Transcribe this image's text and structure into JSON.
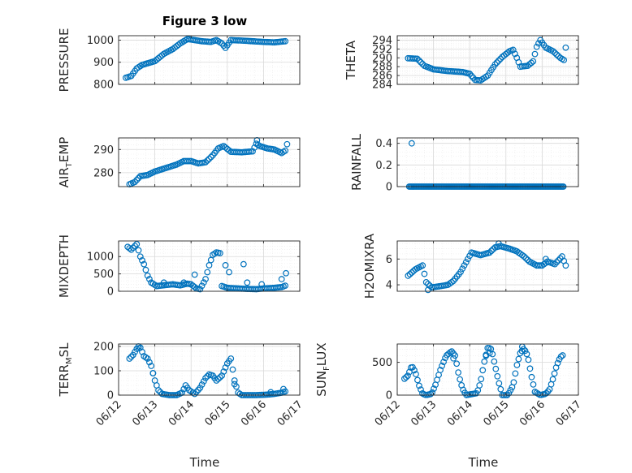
{
  "figure": {
    "title": "Figure 3 low",
    "xlabel": "Time"
  },
  "colors": {
    "marker": "#0072BD",
    "axes": "#262626",
    "grid": "#d9d9d9",
    "minorGrid": "#ececec",
    "background": "#ffffff"
  },
  "chart_data": [
    {
      "type": "scatter",
      "title": "Figure 3 low",
      "ylabel": "PRESSURE",
      "xlabel": "",
      "ylim": [
        800,
        1020
      ],
      "yticks": [
        800,
        900,
        1000
      ],
      "xlim": [
        "06/12",
        "06/17"
      ],
      "xticks": [
        "06/12",
        "06/13",
        "06/14",
        "06/15",
        "06/16",
        "06/17"
      ],
      "grid": true,
      "minor_grid": true,
      "series": [
        {
          "name": "",
          "shape": "pressure"
        }
      ]
    },
    {
      "type": "scatter",
      "title": "",
      "ylabel": "THETA",
      "xlabel": "",
      "ylim": [
        284,
        295
      ],
      "yticks": [
        284,
        286,
        288,
        290,
        292,
        294
      ],
      "xlim": [
        "06/12",
        "06/17"
      ],
      "xticks": [
        "06/12",
        "06/13",
        "06/14",
        "06/15",
        "06/16",
        "06/17"
      ],
      "grid": true,
      "minor_grid": true,
      "series": [
        {
          "name": "",
          "shape": "theta"
        }
      ]
    },
    {
      "type": "scatter",
      "title": "",
      "ylabel": "AIR_TEMP",
      "ylabel_parts": [
        "AIR",
        "T",
        "EMP"
      ],
      "xlabel": "",
      "ylim": [
        274,
        295
      ],
      "yticks": [
        280,
        290
      ],
      "xlim": [
        "06/12",
        "06/17"
      ],
      "xticks": [
        "06/12",
        "06/13",
        "06/14",
        "06/15",
        "06/16",
        "06/17"
      ],
      "grid": true,
      "minor_grid": true,
      "series": [
        {
          "name": "",
          "shape": "airtemp"
        }
      ]
    },
    {
      "type": "scatter",
      "title": "",
      "ylabel": "RAINFALL",
      "xlabel": "",
      "ylim": [
        0,
        0.45
      ],
      "yticks": [
        0,
        0.2,
        0.4
      ],
      "xlim": [
        "06/12",
        "06/17"
      ],
      "xticks": [
        "06/12",
        "06/13",
        "06/14",
        "06/15",
        "06/16",
        "06/17"
      ],
      "grid": true,
      "minor_grid": true,
      "series": [
        {
          "name": "",
          "shape": "rain"
        }
      ]
    },
    {
      "type": "scatter",
      "title": "",
      "ylabel": "MIXDEPTH",
      "xlabel": "",
      "ylim": [
        0,
        1450
      ],
      "yticks": [
        0,
        500,
        1000
      ],
      "xlim": [
        "06/12",
        "06/17"
      ],
      "xticks": [
        "06/12",
        "06/13",
        "06/14",
        "06/15",
        "06/16",
        "06/17"
      ],
      "grid": true,
      "minor_grid": true,
      "series": [
        {
          "name": "",
          "shape": "mixdepth"
        }
      ]
    },
    {
      "type": "scatter",
      "title": "",
      "ylabel": "H2OMIXRA",
      "xlabel": "",
      "ylim": [
        3.5,
        7.4
      ],
      "yticks": [
        4,
        6
      ],
      "xlim": [
        "06/12",
        "06/17"
      ],
      "xticks": [
        "06/12",
        "06/13",
        "06/14",
        "06/15",
        "06/16",
        "06/17"
      ],
      "grid": true,
      "minor_grid": true,
      "series": [
        {
          "name": "",
          "shape": "h2o"
        }
      ]
    },
    {
      "type": "scatter",
      "title": "",
      "ylabel": "TERR_MSL",
      "ylabel_parts": [
        "TERR",
        "M",
        "SL"
      ],
      "xlabel": "Time",
      "ylim": [
        0,
        210
      ],
      "yticks": [
        0,
        100,
        200
      ],
      "xlim": [
        "06/12",
        "06/17"
      ],
      "xticks": [
        "06/12",
        "06/13",
        "06/14",
        "06/15",
        "06/16",
        "06/17"
      ],
      "grid": true,
      "minor_grid": true,
      "series": [
        {
          "name": "",
          "shape": "terr"
        }
      ]
    },
    {
      "type": "scatter",
      "title": "",
      "ylabel": "SUN_FLUX",
      "ylabel_parts": [
        "SUN",
        "F",
        "LUX"
      ],
      "xlabel": "Time",
      "ylim": [
        0,
        780
      ],
      "yticks": [
        0,
        500
      ],
      "xlim": [
        "06/12",
        "06/17"
      ],
      "xticks": [
        "06/12",
        "06/13",
        "06/14",
        "06/15",
        "06/16",
        "06/17"
      ],
      "grid": true,
      "minor_grid": true,
      "series": [
        {
          "name": "",
          "shape": "sun"
        }
      ]
    }
  ]
}
